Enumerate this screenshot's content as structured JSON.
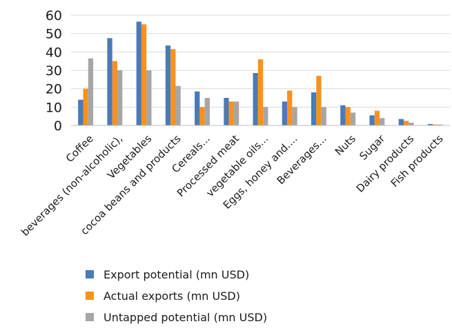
{
  "chart_data": {
    "type": "bar",
    "title": "",
    "xlabel": "",
    "ylabel": "",
    "ylim": [
      0,
      60
    ],
    "yticks": [
      0,
      10,
      20,
      30,
      40,
      50,
      60
    ],
    "grid": true,
    "legend_position": "bottom",
    "categories": [
      "Coffee",
      "beverages (non-alcoholic),",
      "Vegetables",
      "cocoa beans and products",
      "Cereals...",
      "Processed meat",
      "vegetable oils...",
      "Eggs, honey and....",
      "Beverages...",
      "Nuts",
      "Sugar",
      "Dairy products",
      "Fish products"
    ],
    "series": [
      {
        "name": "Export potential (mn USD)",
        "color": "#4a7ab8",
        "values": [
          14,
          47.5,
          56.5,
          43.5,
          18.5,
          15,
          28.5,
          13,
          18,
          11,
          5.5,
          3.5,
          0.8
        ]
      },
      {
        "name": "Actual exports (mn USD)",
        "color": "#f7921e",
        "values": [
          20,
          35,
          55,
          41.5,
          10,
          13,
          36,
          19,
          27,
          10,
          8,
          2.5,
          0.5
        ]
      },
      {
        "name": "Untapped potential (mn USD)",
        "color": "#a6a6a6",
        "values": [
          36.5,
          30,
          30,
          21.5,
          15,
          13,
          10,
          10,
          10,
          7,
          4,
          1.5,
          0.5
        ]
      }
    ]
  }
}
